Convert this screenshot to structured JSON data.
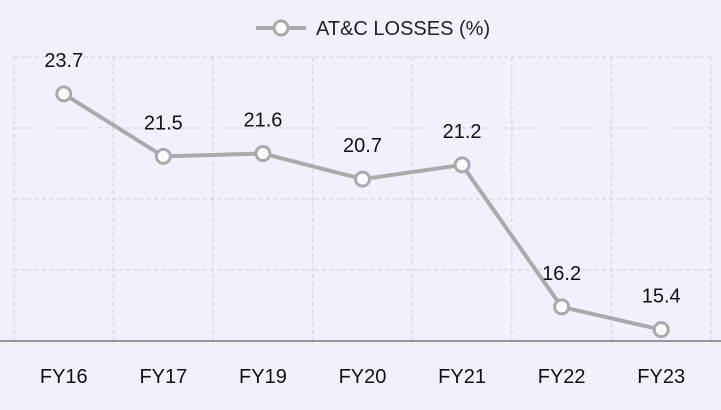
{
  "chart_data": {
    "type": "line",
    "categories": [
      "FY16",
      "FY17",
      "FY19",
      "FY20",
      "FY21",
      "FY22",
      "FY23"
    ],
    "series": [
      {
        "name": "AT&C LOSSES (%)",
        "values": [
          23.7,
          21.5,
          21.6,
          20.7,
          21.2,
          16.2,
          15.4
        ],
        "data_labels": [
          "23.7",
          "21.5",
          "21.6",
          "20.7",
          "21.2",
          "16.2",
          "15.4"
        ]
      }
    ],
    "title": "",
    "xlabel": "",
    "ylabel": "",
    "ylim": [
      15,
      25
    ],
    "grid": true,
    "legend": "top-center",
    "colors": {
      "background": "#f2f0fb",
      "line": "#aaaaaa",
      "marker_fill": "#ffffff",
      "grid": "#d0d0d0",
      "axis": "#777777"
    }
  }
}
